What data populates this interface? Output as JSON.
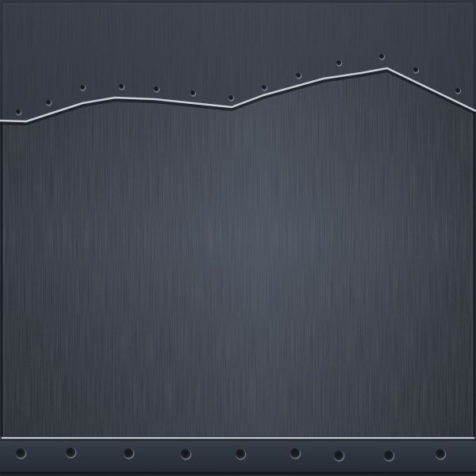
{
  "texture": {
    "name": "brushed-metal-plate",
    "colors": {
      "plate_base": "#3a404b",
      "plate_light": "#4a515d",
      "plate_dark": "#232830",
      "lower_panel": "#353b45",
      "seam_highlight": "#c9ced6",
      "seam_shadow": "#14171c",
      "rivet_fill": "#1c2026",
      "rivet_highlight": "#aab0b9",
      "bottom_strip": "#2d333c"
    },
    "top_seam_rivet_count": 14,
    "bottom_strip_rivet_count": 9
  }
}
